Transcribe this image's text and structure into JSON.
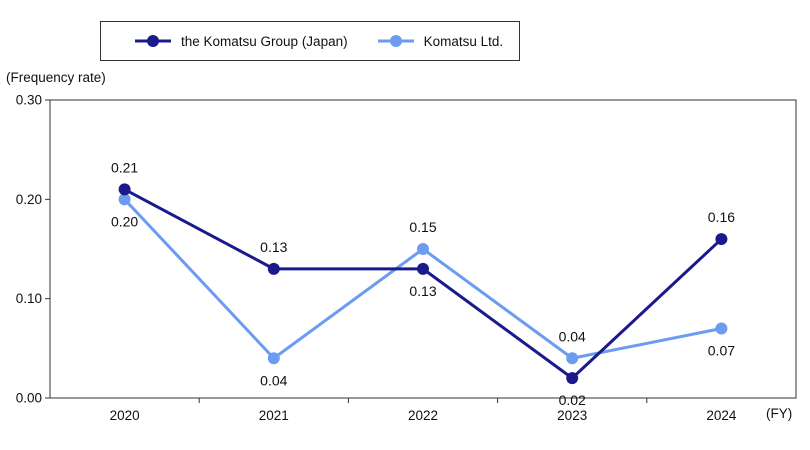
{
  "legend": {
    "group_label": "the Komatsu Group (Japan)",
    "ltd_label": "Komatsu Ltd."
  },
  "ylabel": "(Frequency rate)",
  "xunit": "(FY)",
  "colors": {
    "group": "#1a1a8c",
    "ltd": "#6b9cf0",
    "axis": "#333333"
  },
  "chart_data": {
    "type": "line",
    "categories": [
      "2020",
      "2021",
      "2022",
      "2023",
      "2024"
    ],
    "ylim": [
      0,
      0.3
    ],
    "yticks": [
      "0.00",
      "0.10",
      "0.20",
      "0.30"
    ],
    "grid": false,
    "legend_position": "top",
    "series": [
      {
        "name": "the Komatsu Group (Japan)",
        "values": [
          0.21,
          0.13,
          0.13,
          0.02,
          0.16
        ],
        "labels": [
          "0.21",
          "0.13",
          "0.13",
          "0.02",
          "0.16"
        ],
        "label_pos": [
          "above",
          "above",
          "below",
          "below",
          "above"
        ]
      },
      {
        "name": "Komatsu Ltd.",
        "values": [
          0.2,
          0.04,
          0.15,
          0.04,
          0.07
        ],
        "labels": [
          "0.20",
          "0.04",
          "0.15",
          "0.04",
          "0.07"
        ],
        "label_pos": [
          "below",
          "below",
          "above",
          "above",
          "below"
        ]
      }
    ]
  }
}
